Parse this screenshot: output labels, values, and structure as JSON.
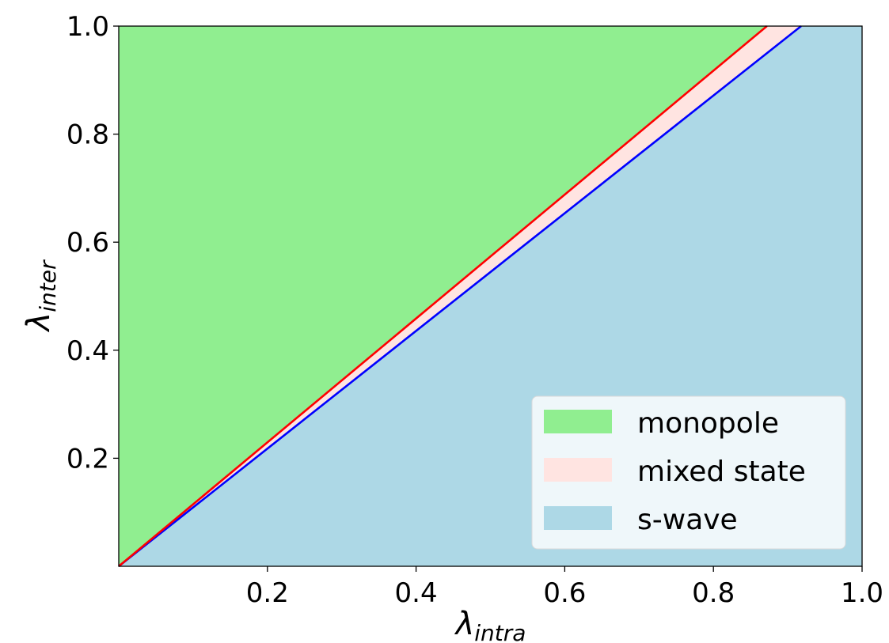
{
  "chart_data": {
    "type": "area",
    "title": "",
    "xlabel": {
      "symbol": "λ",
      "subscript": "intra"
    },
    "ylabel": {
      "symbol": "λ",
      "subscript": "inter"
    },
    "xlim": [
      0.0,
      1.0
    ],
    "ylim": [
      0.0,
      1.0
    ],
    "xticks": [
      "0.2",
      "0.4",
      "0.6",
      "0.8",
      "1.0"
    ],
    "yticks": [
      "0.2",
      "0.4",
      "0.6",
      "0.8",
      "1.0"
    ],
    "xtick_values": [
      0.2,
      0.4,
      0.6,
      0.8,
      1.0
    ],
    "ytick_values": [
      0.2,
      0.4,
      0.6,
      0.8,
      1.0
    ],
    "grid": false,
    "legend_position": "lower-right",
    "regions": [
      {
        "name": "monopole",
        "color": "#90ee90"
      },
      {
        "name": "mixed state",
        "color": "#ffe4e1"
      },
      {
        "name": "s-wave",
        "color": "#add8e6"
      }
    ],
    "boundaries": [
      {
        "color": "#ff0000",
        "x": [
          0.0,
          0.872
        ],
        "y": [
          0.0,
          1.0
        ]
      },
      {
        "color": "#0000ff",
        "x": [
          0.0,
          0.918
        ],
        "y": [
          0.0,
          1.0
        ]
      }
    ]
  }
}
